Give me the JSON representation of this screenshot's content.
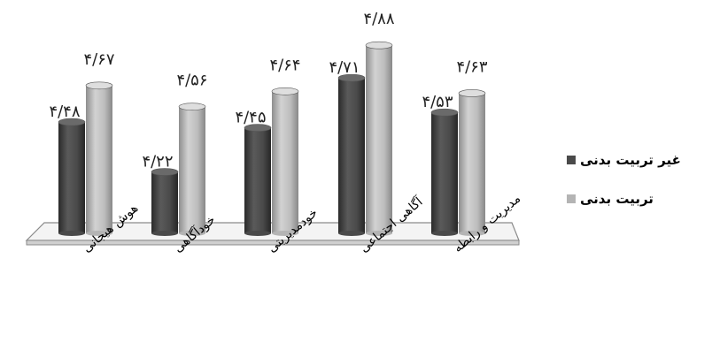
{
  "chart_data": {
    "type": "bar",
    "categories": [
      "هوش هیجانی",
      "خودآگاهی",
      "خودمدیریتی",
      "آگاهی اجتماعی",
      "مدیریت و رابطه"
    ],
    "series": [
      {
        "name": "غیر تربیت بدنی",
        "values": [
          4.48,
          4.22,
          4.45,
          4.71,
          4.53
        ],
        "labels": [
          "۴/۴۸",
          "۴/۲۲",
          "۴/۴۵",
          "۴/۷۱",
          "۴/۵۳"
        ],
        "color": "#4a4a4a"
      },
      {
        "name": "تربیت بدنی",
        "values": [
          4.67,
          4.56,
          4.64,
          4.88,
          4.63
        ],
        "labels": [
          "۴/۶۷",
          "۴/۵۶",
          "۴/۶۴",
          "۴/۸۸",
          "۴/۶۳"
        ],
        "color": "#b4b4b4"
      }
    ],
    "ylim": [
      3.9,
      4.95
    ],
    "grid": false,
    "legend_position": "right"
  }
}
